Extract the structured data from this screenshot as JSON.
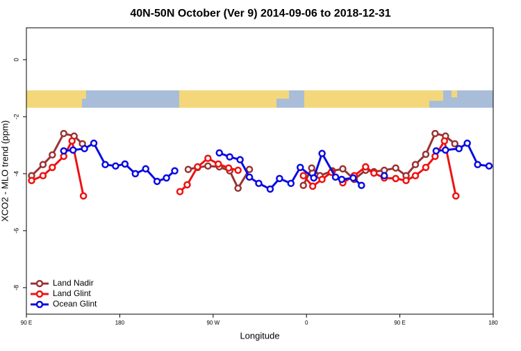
{
  "chart_data": {
    "type": "line",
    "title": "40N-50N October (Ver 9)   2014-09-06 to 2018-12-31",
    "x_label": "Longitude",
    "y_label": "XCO2 - MLO trend (ppm)",
    "xlim": [
      90,
      540
    ],
    "xticks": [
      {
        "value": 90,
        "label": "90 E"
      },
      {
        "value": 180,
        "label": "180"
      },
      {
        "value": 270,
        "label": "90 W"
      },
      {
        "value": 360,
        "label": "0"
      },
      {
        "value": 450,
        "label": "90 E"
      },
      {
        "value": 540,
        "label": "180"
      }
    ],
    "ylim": [
      -8.93,
      1.12
    ],
    "yticks": [
      0,
      -2,
      -4,
      -6,
      -8
    ],
    "legend": "bottom-left",
    "series": [
      {
        "name": "Land Nadir",
        "color": "#993333",
        "x": [
          95,
          106,
          115,
          126,
          136,
          144,
          null,
          246,
          255,
          265,
          276,
          286,
          294,
          305,
          null,
          357,
          365,
          373,
          385,
          395,
          406,
          417,
          425,
          435,
          446,
          456,
          465,
          475,
          484,
          494,
          503
        ],
        "values": [
          -4.07,
          -3.68,
          -3.34,
          -2.59,
          -2.68,
          -2.95,
          null,
          -3.85,
          -3.78,
          -3.73,
          -3.76,
          -3.9,
          -4.51,
          -3.85,
          null,
          -4.41,
          -3.8,
          -4.07,
          -3.9,
          -3.83,
          -4.2,
          -3.88,
          -3.93,
          -3.88,
          -3.8,
          -4.07,
          -3.68,
          -3.32,
          -2.59,
          -2.68,
          -2.95
        ]
      },
      {
        "name": "Land Glint",
        "color": "#ee1111",
        "x": [
          95,
          106,
          115,
          126,
          134,
          145,
          null,
          238,
          245,
          255,
          265,
          275,
          285,
          294,
          null,
          357,
          366,
          375,
          384,
          395,
          406,
          417,
          425,
          435,
          446,
          456,
          465,
          475,
          484,
          493,
          504
        ],
        "values": [
          -4.24,
          -4.07,
          -3.78,
          -3.39,
          -2.85,
          -4.78,
          null,
          -4.63,
          -4.39,
          -3.76,
          -3.46,
          -3.66,
          -3.8,
          -3.88,
          null,
          -4.07,
          -4.44,
          -4.2,
          -3.95,
          -4.32,
          -4.07,
          -3.76,
          -3.98,
          -4.15,
          -4.17,
          -4.24,
          -4.07,
          -3.78,
          -3.39,
          -2.85,
          -4.78
        ]
      },
      {
        "name": "Ocean Glint",
        "color": "#0a0ae0",
        "x": [
          126,
          135,
          146,
          155,
          166,
          176,
          185,
          195,
          205,
          216,
          225,
          233,
          null,
          276,
          286,
          296,
          305,
          314,
          325,
          334,
          345,
          354,
          367,
          375,
          388,
          394,
          405,
          413,
          null,
          435,
          null,
          485,
          494,
          507,
          515,
          525,
          536
        ],
        "values": [
          -3.2,
          -3.17,
          -3.12,
          -2.93,
          -3.68,
          -3.73,
          -3.66,
          -4.0,
          -3.83,
          -4.27,
          -4.15,
          -3.9,
          null,
          -3.27,
          -3.41,
          -3.51,
          -4.12,
          -4.34,
          -4.54,
          -4.17,
          -4.34,
          -3.78,
          -4.15,
          -3.29,
          -4.12,
          -4.2,
          -4.15,
          -4.41,
          null,
          -4.07,
          null,
          -3.2,
          -3.17,
          -3.12,
          -2.93,
          -3.68,
          -3.73
        ]
      }
    ]
  }
}
